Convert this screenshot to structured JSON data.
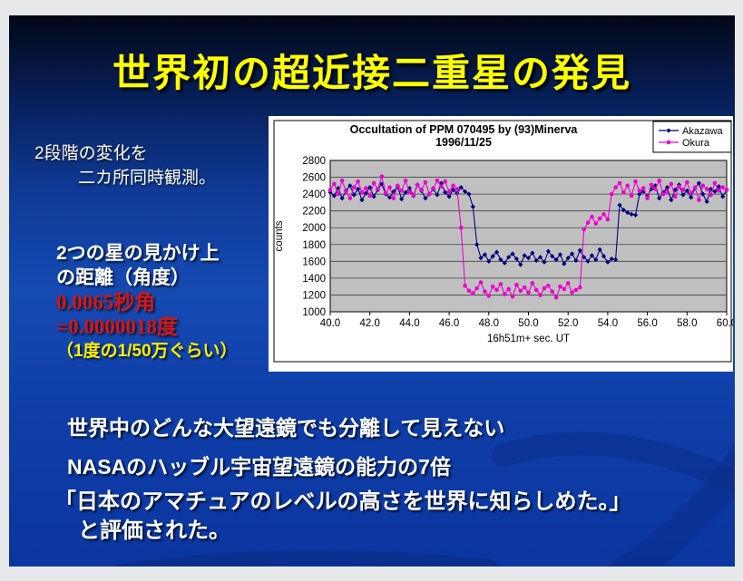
{
  "slide": {
    "title": "世界初の超近接二重星の発見",
    "observation_note": {
      "line1": "2段階の変化を",
      "line2": "二カ所同時観測。"
    },
    "separation": {
      "heading_line1": "2つの星の見かけ上",
      "heading_line2": "の距離（角度）",
      "value_arcsec": "0.0065秒角",
      "value_degrees": "=0.0000018度",
      "note": "（1度の1/50万ぐらい）"
    },
    "facts": {
      "line1": "世界中のどんな大望遠鏡でも分離して見えない",
      "line2": "NASAのハッブル宇宙望遠鏡の能力の7倍",
      "quote_line1": "「日本のアマチュアのレベルの高さを世界に知らしめた。」",
      "quote_line2": "と評価された。"
    },
    "colors": {
      "title": "#ffff00",
      "red_text": "#d01818",
      "yellow_note": "#ffee00",
      "background_top": "#020716",
      "background_bottom": "#0b35a0"
    }
  },
  "chart_data": {
    "type": "line",
    "title_line1": "Occultation of PPM 070495  by  (93)Minerva",
    "title_line2": "1996/11/25",
    "xlabel": "16h51m+  sec. UT",
    "ylabel": "counts",
    "ylim": [
      1000,
      2800
    ],
    "ytick_step": 200,
    "yticks": [
      1000,
      1200,
      1400,
      1600,
      1800,
      2000,
      2200,
      2400,
      2600,
      2800
    ],
    "xticks": [
      40.0,
      42.0,
      44.0,
      46.0,
      48.0,
      50.0,
      52.0,
      54.0,
      56.0,
      58.0,
      60.0
    ],
    "x_start": 40.0,
    "x_step": 0.2,
    "grid": true,
    "plot_bg": "#c0c0c0",
    "legend_position": "top-right",
    "series": [
      {
        "name": "Akazawa",
        "color": "#000080",
        "marker": "diamond",
        "values": [
          2420,
          2380,
          2470,
          2350,
          2440,
          2500,
          2390,
          2460,
          2330,
          2410,
          2480,
          2370,
          2450,
          2520,
          2400,
          2360,
          2430,
          2490,
          2340,
          2420,
          2470,
          2380,
          2510,
          2440,
          2350,
          2400,
          2460,
          2390,
          2530,
          2420,
          2370,
          2450,
          2410,
          2480,
          2430,
          2400,
          2250,
          1800,
          1640,
          1680,
          1600,
          1660,
          1710,
          1620,
          1580,
          1650,
          1690,
          1630,
          1560,
          1670,
          1640,
          1700,
          1610,
          1650,
          1590,
          1720,
          1660,
          1620,
          1680,
          1570,
          1640,
          1690,
          1610,
          1730,
          1650,
          1600,
          1670,
          1620,
          1740,
          1660,
          1590,
          1630,
          1620,
          2270,
          2210,
          2180,
          2160,
          2150,
          2400,
          2430,
          2380,
          2460,
          2500,
          2350,
          2420,
          2480,
          2330,
          2450,
          2510,
          2390,
          2440,
          2360,
          2470,
          2530,
          2400,
          2310,
          2460,
          2430,
          2490,
          2370,
          2450
        ]
      },
      {
        "name": "Okura",
        "color": "#ee00d0",
        "marker": "circle",
        "values": [
          2450,
          2520,
          2400,
          2560,
          2430,
          2350,
          2480,
          2550,
          2420,
          2470,
          2380,
          2530,
          2460,
          2610,
          2410,
          2480,
          2350,
          2500,
          2440,
          2560,
          2420,
          2390,
          2510,
          2450,
          2540,
          2400,
          2470,
          2560,
          2490,
          2550,
          2430,
          2500,
          2460,
          2000,
          1310,
          1250,
          1220,
          1280,
          1350,
          1240,
          1190,
          1300,
          1260,
          1330,
          1210,
          1270,
          1180,
          1320,
          1250,
          1290,
          1230,
          1340,
          1260,
          1200,
          1280,
          1310,
          1240,
          1170,
          1300,
          1270,
          1340,
          1230,
          1260,
          1290,
          1980,
          2060,
          2130,
          2050,
          2110,
          2160,
          2100,
          2400,
          2480,
          2530,
          2420,
          2500,
          2380,
          2550,
          2440,
          2470,
          2350,
          2510,
          2460,
          2560,
          2400,
          2430,
          2520,
          2370,
          2490,
          2450,
          2540,
          2410,
          2480,
          2330,
          2500,
          2460,
          2390,
          2530,
          2440,
          2480,
          2450
        ]
      }
    ]
  }
}
